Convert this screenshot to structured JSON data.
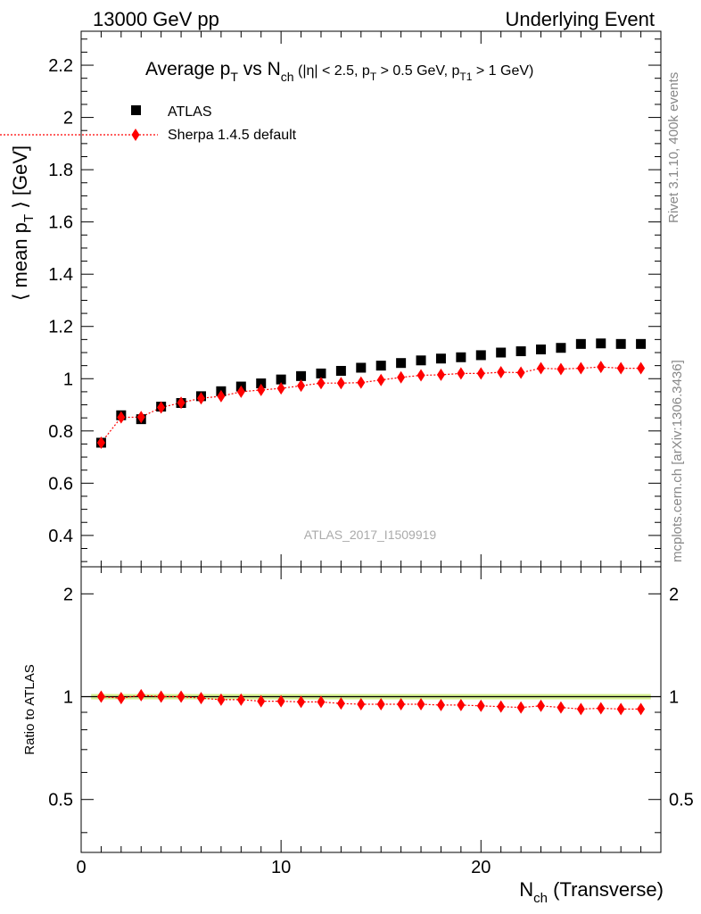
{
  "header": {
    "left": "13000 GeV pp",
    "right": "Underlying Event"
  },
  "side_labels": {
    "rivet": "Rivet 3.1.10,  400k events",
    "mcplots": "mcplots.cern.ch [arXiv:1306.3436]"
  },
  "chart_data": {
    "type": "scatter",
    "title": {
      "main": "Average p",
      "sub1": "T",
      "mid1": " vs N",
      "sub2": "ch",
      "rest": " (|η| < 2.5, p",
      "sub3": "T",
      "rest2": " > 0.5 GeV, p",
      "sub4": "T1",
      "rest3": " > 1 GeV)"
    },
    "ylabel": {
      "pre": "⟨ mean p",
      "sub": "T",
      "post": " ⟩ [GeV]"
    },
    "xlabel": {
      "pre": "N",
      "sub": "ch",
      "post": " (Transverse)"
    },
    "ratio_ylabel": "Ratio to ATLAS",
    "watermark": "ATLAS_2017_I1509919",
    "xlim": [
      0,
      29
    ],
    "ylim": [
      0.28,
      2.33
    ],
    "ratio_ylim": [
      0.35,
      2.4
    ],
    "x_ticks": [
      "0",
      "10",
      "20"
    ],
    "y_ticks": [
      "0.4",
      "0.6",
      "0.8",
      "1",
      "1.2",
      "1.4",
      "1.6",
      "1.8",
      "2",
      "2.2"
    ],
    "ratio_ticks": [
      "0.5",
      "1",
      "2"
    ],
    "series": [
      {
        "name": "ATLAS",
        "color": "#000000",
        "marker": "square",
        "x": [
          1,
          2,
          3,
          4,
          5,
          6,
          7,
          8,
          9,
          10,
          11,
          12,
          13,
          14,
          15,
          16,
          17,
          18,
          19,
          20,
          21,
          22,
          23,
          24,
          25,
          26,
          27,
          28
        ],
        "y": [
          0.755,
          0.86,
          0.845,
          0.893,
          0.907,
          0.933,
          0.952,
          0.97,
          0.982,
          0.997,
          1.01,
          1.02,
          1.03,
          1.042,
          1.05,
          1.06,
          1.07,
          1.077,
          1.082,
          1.09,
          1.1,
          1.105,
          1.112,
          1.118,
          1.133,
          1.135,
          1.133,
          1.133
        ]
      },
      {
        "name": "Sherpa 1.4.5 default",
        "color": "#ff0000",
        "marker": "diamond",
        "x": [
          1,
          2,
          3,
          4,
          5,
          6,
          7,
          8,
          9,
          10,
          11,
          12,
          13,
          14,
          15,
          16,
          17,
          18,
          19,
          20,
          21,
          22,
          23,
          24,
          25,
          26,
          27,
          28
        ],
        "y": [
          0.755,
          0.852,
          0.853,
          0.89,
          0.908,
          0.925,
          0.933,
          0.95,
          0.957,
          0.963,
          0.973,
          0.983,
          0.983,
          0.985,
          0.995,
          1.005,
          1.013,
          1.015,
          1.02,
          1.02,
          1.025,
          1.023,
          1.04,
          1.037,
          1.04,
          1.045,
          1.04,
          1.04
        ]
      }
    ],
    "ratio": {
      "x": [
        1,
        2,
        3,
        4,
        5,
        6,
        7,
        8,
        9,
        10,
        11,
        12,
        13,
        14,
        15,
        16,
        17,
        18,
        19,
        20,
        21,
        22,
        23,
        24,
        25,
        26,
        27,
        28
      ],
      "y": [
        1.0,
        0.99,
        1.01,
        1.0,
        1.0,
        0.99,
        0.98,
        0.98,
        0.97,
        0.97,
        0.965,
        0.965,
        0.955,
        0.95,
        0.95,
        0.95,
        0.95,
        0.945,
        0.945,
        0.94,
        0.935,
        0.93,
        0.94,
        0.93,
        0.92,
        0.925,
        0.92,
        0.92
      ]
    }
  }
}
